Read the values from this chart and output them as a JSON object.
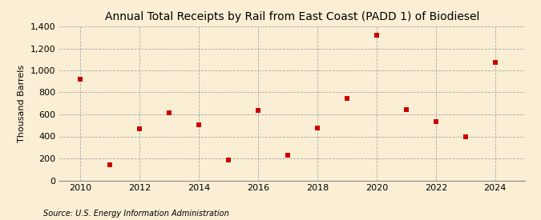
{
  "title": "Annual Total Receipts by Rail from East Coast (PADD 1) of Biodiesel",
  "ylabel": "Thousand Barrels",
  "source": "Source: U.S. Energy Information Administration",
  "background_color": "#faefd4",
  "years": [
    2010,
    2011,
    2012,
    2013,
    2014,
    2015,
    2016,
    2017,
    2018,
    2019,
    2020,
    2021,
    2022,
    2023,
    2024
  ],
  "values": [
    920,
    145,
    470,
    615,
    505,
    185,
    635,
    230,
    475,
    745,
    1320,
    645,
    535,
    395,
    1070
  ],
  "marker_color": "#cc0000",
  "marker": "s",
  "marker_size": 16,
  "ylim": [
    0,
    1400
  ],
  "yticks": [
    0,
    200,
    400,
    600,
    800,
    1000,
    1200,
    1400
  ],
  "ytick_labels": [
    "0",
    "200",
    "400",
    "600",
    "800",
    "1,000",
    "1,200",
    "1,400"
  ],
  "xticks": [
    2010,
    2012,
    2014,
    2016,
    2018,
    2020,
    2022,
    2024
  ],
  "xlim": [
    2009.3,
    2025.0
  ],
  "grid_color": "#aaaaaa",
  "title_fontsize": 10,
  "label_fontsize": 8,
  "tick_fontsize": 8,
  "source_fontsize": 7
}
